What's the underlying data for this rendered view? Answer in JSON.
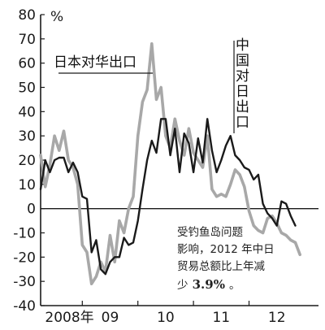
{
  "chart_data": {
    "type": "line",
    "title": "",
    "ylabel": "%",
    "xlabel": "",
    "ylim": [
      -40,
      80
    ],
    "yticks": [
      80,
      70,
      60,
      50,
      40,
      30,
      20,
      10,
      0,
      -10,
      -20,
      -30,
      -40
    ],
    "x_range": [
      0,
      60
    ],
    "xtick_labels": [
      {
        "label": "2008年",
        "x": 2
      },
      {
        "label": "09",
        "x": 15
      },
      {
        "label": "10",
        "x": 27
      },
      {
        "label": "11",
        "x": 39
      },
      {
        "label": "12",
        "x": 51
      }
    ],
    "year_boundaries": [
      9,
      21,
      33,
      45
    ],
    "series": [
      {
        "name": "日本对华出口",
        "color": "#a8a8a8",
        "values": [
          [
            0,
            22
          ],
          [
            1,
            9
          ],
          [
            2,
            18
          ],
          [
            3,
            30
          ],
          [
            4,
            24
          ],
          [
            5,
            32
          ],
          [
            6,
            20
          ],
          [
            7,
            17
          ],
          [
            8,
            10
          ],
          [
            9,
            -15
          ],
          [
            10,
            -18
          ],
          [
            11,
            -31
          ],
          [
            12,
            -28
          ],
          [
            13,
            -22
          ],
          [
            14,
            -26
          ],
          [
            15,
            -11
          ],
          [
            16,
            -22
          ],
          [
            17,
            -5
          ],
          [
            18,
            -10
          ],
          [
            19,
            0
          ],
          [
            20,
            5
          ],
          [
            21,
            30
          ],
          [
            22,
            44
          ],
          [
            23,
            49
          ],
          [
            24,
            68
          ],
          [
            25,
            45
          ],
          [
            26,
            50
          ],
          [
            27,
            30
          ],
          [
            28,
            25
          ],
          [
            29,
            37
          ],
          [
            30,
            28
          ],
          [
            31,
            22
          ],
          [
            32,
            33
          ],
          [
            33,
            23
          ],
          [
            34,
            20
          ],
          [
            35,
            17
          ],
          [
            36,
            30
          ],
          [
            37,
            8
          ],
          [
            38,
            5
          ],
          [
            39,
            6
          ],
          [
            40,
            5
          ],
          [
            41,
            10
          ],
          [
            42,
            16
          ],
          [
            43,
            14
          ],
          [
            44,
            9
          ],
          [
            45,
            -1
          ],
          [
            46,
            -7
          ],
          [
            47,
            -9
          ],
          [
            48,
            -10
          ],
          [
            49,
            -4
          ],
          [
            50,
            -3
          ],
          [
            51,
            -6
          ],
          [
            52,
            -10
          ],
          [
            53,
            -11
          ],
          [
            54,
            -13
          ],
          [
            55,
            -14
          ],
          [
            56,
            -19
          ]
        ]
      },
      {
        "name": "中国对日出口",
        "color": "#1a1a1a",
        "values": [
          [
            0,
            8
          ],
          [
            1,
            20
          ],
          [
            2,
            15
          ],
          [
            3,
            20
          ],
          [
            4,
            21
          ],
          [
            5,
            21
          ],
          [
            6,
            15
          ],
          [
            7,
            19
          ],
          [
            8,
            15
          ],
          [
            9,
            5
          ],
          [
            10,
            4
          ],
          [
            11,
            -18
          ],
          [
            12,
            -13
          ],
          [
            13,
            -25
          ],
          [
            14,
            -27
          ],
          [
            15,
            -22
          ],
          [
            16,
            -20
          ],
          [
            17,
            -20
          ],
          [
            18,
            -12
          ],
          [
            19,
            -15
          ],
          [
            20,
            -14
          ],
          [
            21,
            -5
          ],
          [
            22,
            8
          ],
          [
            23,
            20
          ],
          [
            24,
            28
          ],
          [
            25,
            23
          ],
          [
            26,
            37
          ],
          [
            27,
            37
          ],
          [
            28,
            22
          ],
          [
            29,
            33
          ],
          [
            30,
            15
          ],
          [
            31,
            31
          ],
          [
            32,
            27
          ],
          [
            33,
            15
          ],
          [
            34,
            29
          ],
          [
            35,
            19
          ],
          [
            36,
            37
          ],
          [
            37,
            24
          ],
          [
            38,
            15
          ],
          [
            39,
            20
          ],
          [
            40,
            26
          ],
          [
            41,
            30
          ],
          [
            42,
            22
          ],
          [
            43,
            20
          ],
          [
            44,
            17
          ],
          [
            45,
            16
          ],
          [
            46,
            12
          ],
          [
            47,
            14
          ],
          [
            48,
            2
          ],
          [
            49,
            -2
          ],
          [
            50,
            -4
          ],
          [
            51,
            -7
          ],
          [
            52,
            3
          ],
          [
            53,
            2
          ],
          [
            54,
            -3
          ],
          [
            55,
            -7
          ]
        ]
      }
    ],
    "annotation": {
      "line1": "受钓鱼岛问题",
      "line2": "影响，2012 年中日",
      "line3": "贸易总额比上年减",
      "line4_prefix": "少",
      "line4_value": "3.9%",
      "line4_suffix": "。"
    }
  }
}
